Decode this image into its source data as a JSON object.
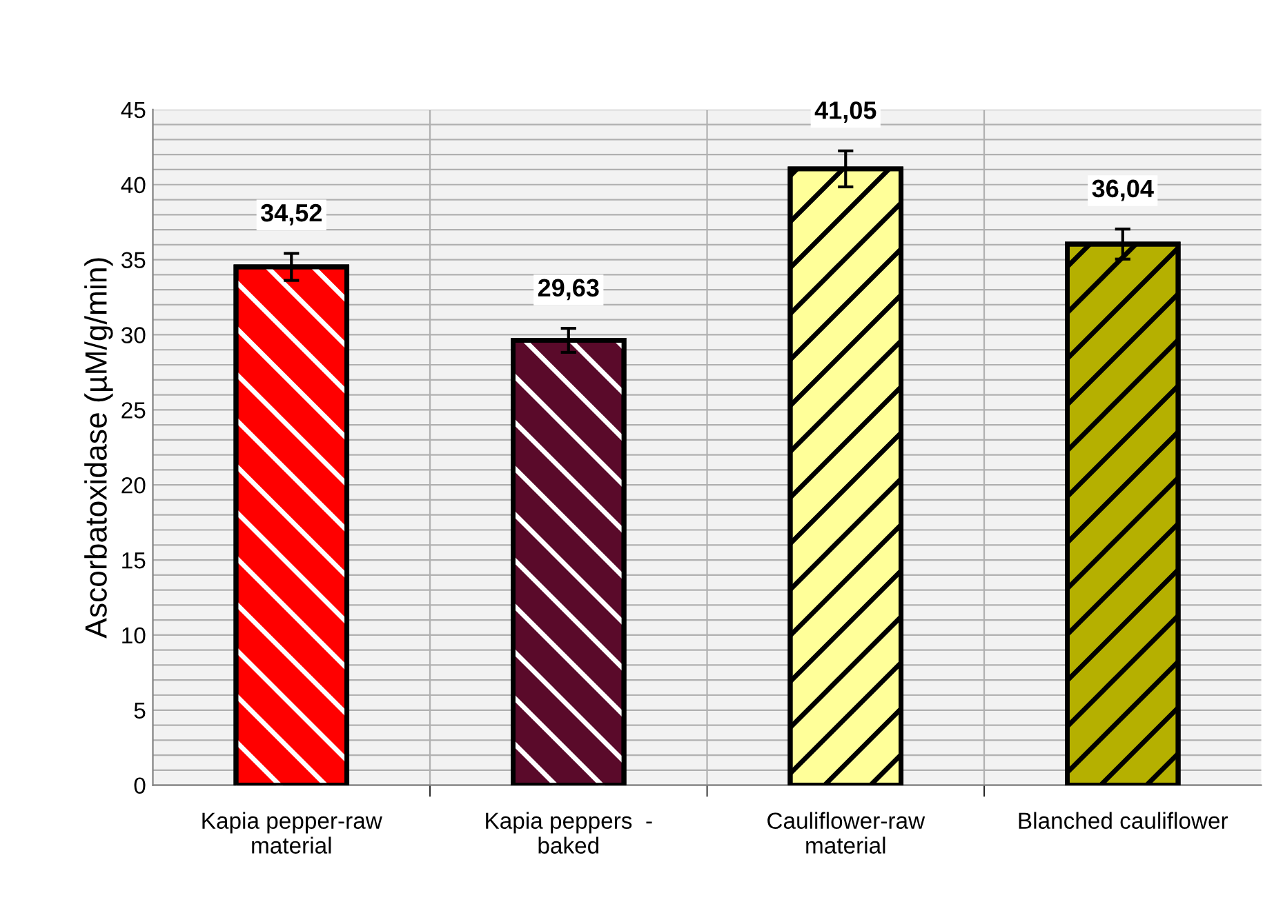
{
  "chart_data": {
    "type": "bar",
    "ylabel": "Ascorbatoxidase (µM/g/min)",
    "categories": [
      "Kapia pepper-raw\nmaterial",
      "Kapia peppers  -\nbaked",
      "Cauliflower-raw\nmaterial",
      "Blanched cauliflower"
    ],
    "values": [
      34.52,
      29.63,
      41.05,
      36.04
    ],
    "value_labels": [
      "34,52",
      "29,63",
      "41,05",
      "36,04"
    ],
    "errors": [
      0.9,
      0.8,
      1.2,
      1.0
    ],
    "colors": [
      "#ff0000",
      "#5a0a2a",
      "#ffff99",
      "#b5b000"
    ],
    "ylim": [
      0,
      45
    ],
    "yticks": [
      0,
      {
        "value": 1,
        "label": null
      },
      {
        "value": 2,
        "label": null
      },
      {
        "value": 3,
        "label": null
      },
      {
        "value": 4,
        "label": null
      },
      5,
      {
        "value": 6,
        "label": null
      },
      {
        "value": 7,
        "label": null
      },
      {
        "value": 8,
        "label": null
      },
      {
        "value": 9,
        "label": null
      },
      10,
      {
        "value": 11,
        "label": null
      },
      {
        "value": 12,
        "label": null
      },
      {
        "value": 13,
        "label": null
      },
      {
        "value": 14,
        "label": null
      },
      15,
      {
        "value": 16,
        "label": null
      },
      {
        "value": 17,
        "label": null
      },
      {
        "value": 18,
        "label": null
      },
      {
        "value": 19,
        "label": null
      },
      20,
      {
        "value": 21,
        "label": null
      },
      {
        "value": 22,
        "label": null
      },
      {
        "value": 23,
        "label": null
      },
      {
        "value": 24,
        "label": null
      },
      25,
      {
        "value": 26,
        "label": null
      },
      {
        "value": 27,
        "label": null
      },
      {
        "value": 28,
        "label": null
      },
      {
        "value": 29,
        "label": null
      },
      30,
      {
        "value": 31,
        "label": null
      },
      {
        "value": 32,
        "label": null
      },
      {
        "value": 33,
        "label": null
      },
      {
        "value": 34,
        "label": null
      },
      35,
      {
        "value": 36,
        "label": null
      },
      {
        "value": 37,
        "label": null
      },
      {
        "value": 38,
        "label": null
      },
      {
        "value": 39,
        "label": null
      },
      40,
      {
        "value": 41,
        "label": null
      },
      {
        "value": 42,
        "label": null
      },
      {
        "value": 43,
        "label": null
      },
      {
        "value": 44,
        "label": null
      },
      45
    ],
    "grid": true
  }
}
